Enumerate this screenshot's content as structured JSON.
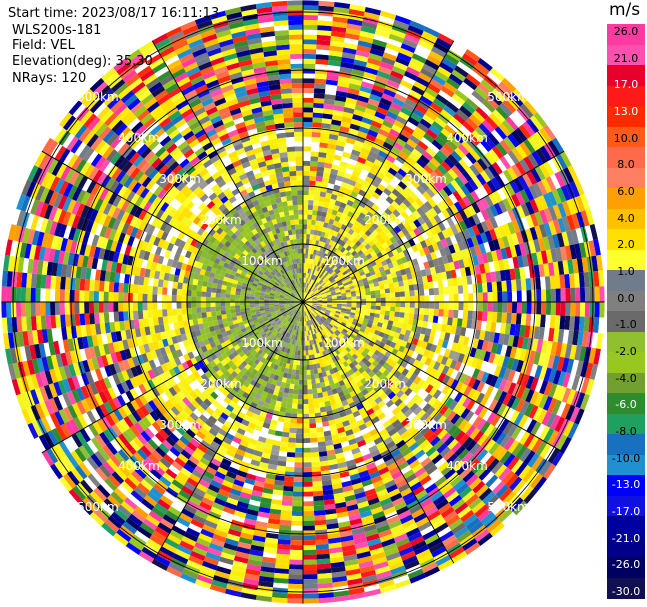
{
  "header": {
    "start_time": "Start time: 2023/08/17 16:11:13",
    "instrument": "WLS200s-181",
    "field": "Field: VEL",
    "elevation": "Elevation(deg): 35.30",
    "nrays": "NRays: 120"
  },
  "colorbar": {
    "title": "m/s",
    "colors": [
      "#ff3aa0",
      "#ff50b0",
      "#e8002a",
      "#ff1a1a",
      "#ff2a00",
      "#ff5a1a",
      "#ff6a4a",
      "#ff8060",
      "#ffa000",
      "#ffc000",
      "#ffe000",
      "#ffff30",
      "#707c8c",
      "#808080",
      "#6a6a6a",
      "#90c030",
      "#98c820",
      "#72a030",
      "#2e8b2e",
      "#20a060",
      "#1870c0",
      "#2090d0",
      "#0000ff",
      "#1010e0",
      "#0000a0",
      "#00008b",
      "#000060",
      "#101050"
    ],
    "labels": [
      "26.0",
      "21.0",
      "17.0",
      "13.0",
      "10.0",
      "8.0",
      "6.0",
      "4.0",
      "2.0",
      "1.0",
      "0.0",
      "-1.0",
      "-2.0",
      "-4.0",
      "-6.0",
      "-8.0",
      "-10.0",
      "-13.0",
      "-17.0",
      "-21.0",
      "-26.0",
      "-30.0"
    ]
  },
  "chart_data": {
    "type": "heatmap",
    "plot_kind": "PPI polar radial velocity scan",
    "field": "VEL",
    "units": "m/s",
    "nrays": 120,
    "range_ring_labels": [
      "100km",
      "200km",
      "300km",
      "400km",
      "500km"
    ],
    "range_rings_km": [
      100,
      200,
      300,
      400,
      500
    ],
    "spokes_deg": [
      0,
      30,
      60,
      90,
      120,
      150,
      180,
      210,
      240,
      270,
      300,
      330
    ],
    "color_scale_min": -30.0,
    "color_scale_max": 26.0,
    "near_range_pattern": {
      "inner_gray_radius_km": 100,
      "left_half_velocity": -2.0,
      "right_half_velocity": 2.0,
      "yellow_band_radius_km": [
        100,
        300
      ],
      "outer_noise_radius_km": [
        300,
        520
      ]
    }
  }
}
